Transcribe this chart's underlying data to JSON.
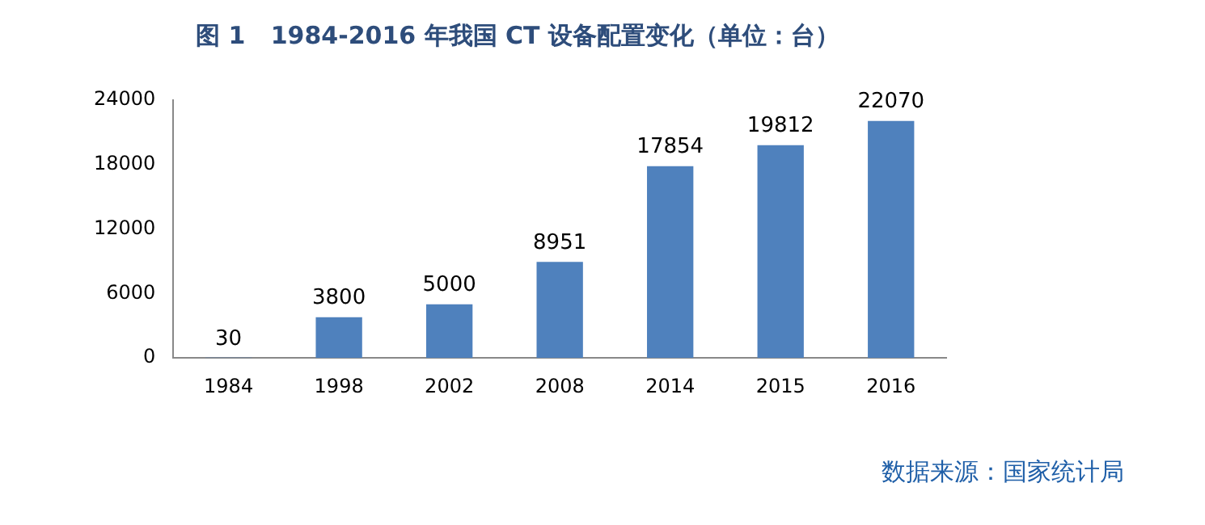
{
  "chart_data": {
    "type": "bar",
    "title": "图 1   1984-2016 年我国 CT 设备配置变化（单位：台）",
    "categories": [
      "1984",
      "1998",
      "2002",
      "2008",
      "2014",
      "2015",
      "2016"
    ],
    "values": [
      30,
      3800,
      5000,
      8951,
      17854,
      19812,
      22070
    ],
    "color": "#4f81bd",
    "ylim": [
      0,
      24000
    ],
    "yticks": [
      0,
      6000,
      12000,
      18000,
      24000
    ],
    "grid": false,
    "data_labels": true,
    "annotations": [
      "数据来源：国家统计局"
    ]
  }
}
